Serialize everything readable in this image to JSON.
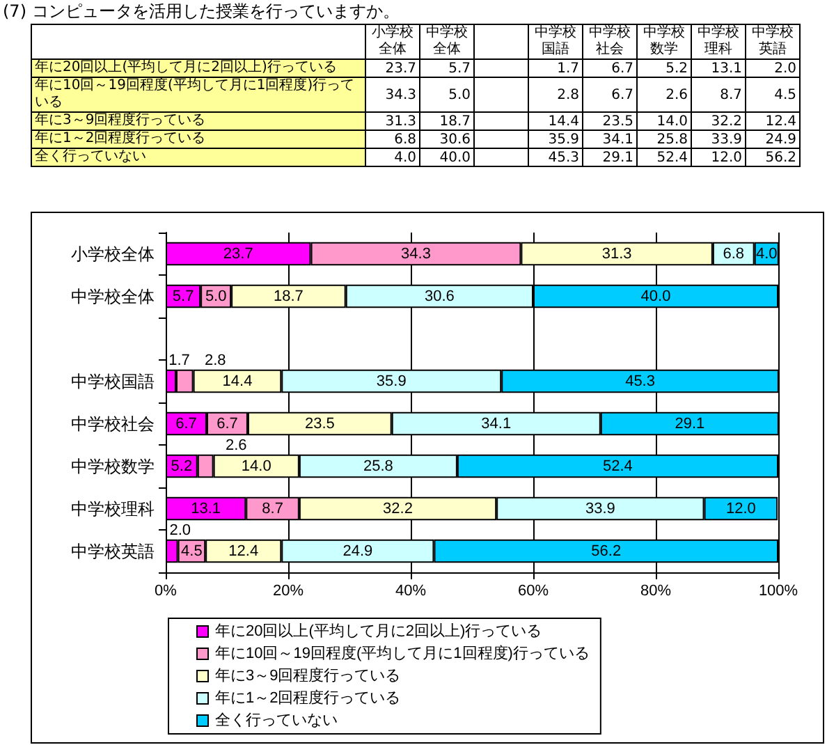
{
  "chart_data": {
    "type": "bar",
    "orientation": "horizontal",
    "stacked": true,
    "title": "(7) コンピュータを活用した授業を行っていますか。",
    "categories": [
      "小学校全体",
      "中学校全体",
      null,
      "中学校国語",
      "中学校社会",
      "中学校数学",
      "中学校理科",
      "中学校英語"
    ],
    "series": [
      {
        "name": "年に20回以上(平均して月に2回以上)行っている",
        "color": "#ff00ff",
        "values": [
          23.7,
          5.7,
          null,
          1.7,
          6.7,
          5.2,
          13.1,
          2.0
        ],
        "value_labels": [
          "23.7",
          "5.7",
          null,
          "1.7",
          "6.7",
          "5.2",
          "13.1",
          "2.0"
        ]
      },
      {
        "name": "年に10回～19回程度(平均して月に1回程度)行っている",
        "color": "#ff99cc",
        "values": [
          34.3,
          5.0,
          null,
          2.8,
          6.7,
          2.6,
          8.7,
          4.5
        ],
        "value_labels": [
          "34.3",
          "5.0",
          null,
          "2.8",
          "6.7",
          "2.6",
          "8.7",
          "4.5"
        ]
      },
      {
        "name": "年に3～9回程度行っている",
        "color": "#ffffcc",
        "values": [
          31.3,
          18.7,
          null,
          14.4,
          23.5,
          14.0,
          32.2,
          12.4
        ],
        "value_labels": [
          "31.3",
          "18.7",
          null,
          "14.4",
          "23.5",
          "14.0",
          "32.2",
          "12.4"
        ]
      },
      {
        "name": "年に1～2回程度行っている",
        "color": "#ccffff",
        "values": [
          6.8,
          30.6,
          null,
          35.9,
          34.1,
          25.8,
          33.9,
          24.9
        ],
        "value_labels": [
          "6.8",
          "30.6",
          null,
          "35.9",
          "34.1",
          "25.8",
          "33.9",
          "24.9"
        ]
      },
      {
        "name": "全く行っていない",
        "color": "#00ccff",
        "values": [
          4.0,
          40.0,
          null,
          45.3,
          29.1,
          52.4,
          12.0,
          56.2
        ],
        "value_labels": [
          "4.0",
          "40.0",
          null,
          "45.3",
          "29.1",
          "52.4",
          "12.0",
          "56.2"
        ]
      }
    ],
    "xlim": [
      0,
      100
    ],
    "xticks": [
      {
        "value": 0,
        "label": "0%"
      },
      {
        "value": 20,
        "label": "20%"
      },
      {
        "value": 40,
        "label": "40%"
      },
      {
        "value": 60,
        "label": "60%"
      },
      {
        "value": 80,
        "label": "80%"
      },
      {
        "value": 100,
        "label": "100%"
      }
    ],
    "grid": "x",
    "legend": "bottom"
  }
}
